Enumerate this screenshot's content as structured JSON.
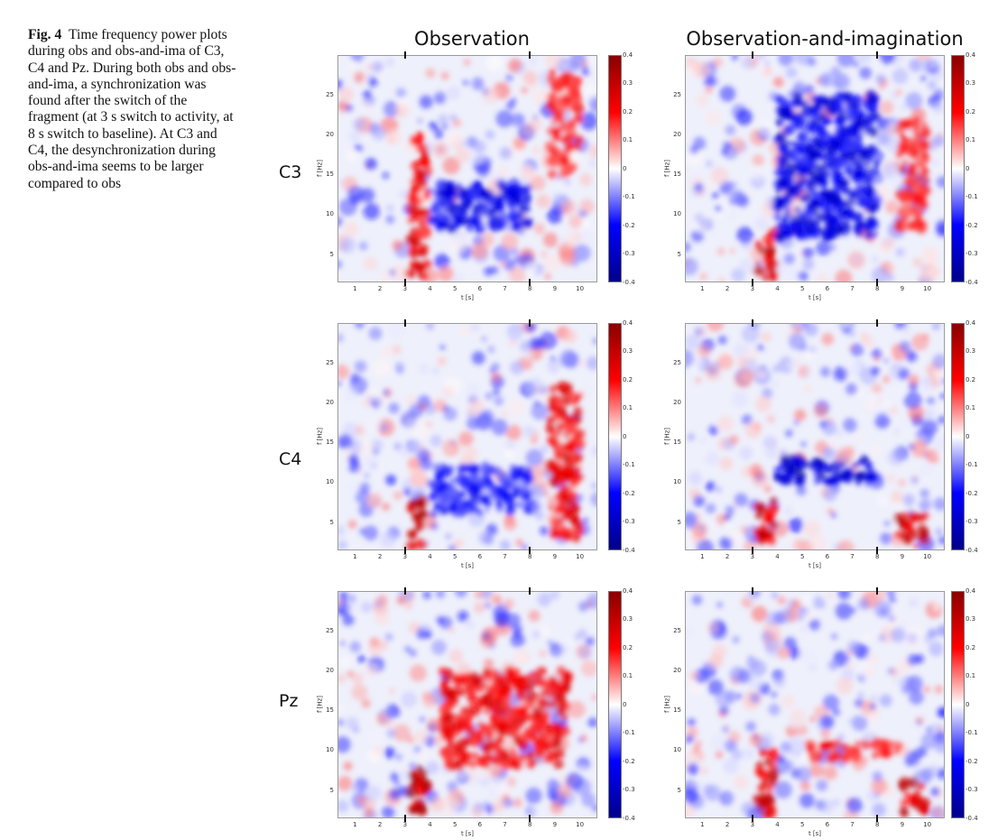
{
  "caption": {
    "label": "Fig. 4",
    "text": "Time frequency power plots during obs and obs-and-ima of C3, C4 and Pz. During both obs and obs-and-ima, a synchronization was found after the switch of the fragment (at 3 s switch to activity, at 8 s switch to baseline). At C3 and C4, the desynchronization during obs-and-ima seems to be larger compared to obs"
  },
  "columns": [
    "Observation",
    "Observation-and-imagination"
  ],
  "rows": [
    "C3",
    "C4",
    "Pz"
  ],
  "axes": {
    "xlabel": "t [s]",
    "ylabel": "f [Hz]",
    "xticks": [
      "1",
      "2",
      "3",
      "4",
      "5",
      "6",
      "7",
      "8",
      "9",
      "10"
    ],
    "yticks": [
      "5",
      "10",
      "15",
      "20",
      "25"
    ],
    "xlim": [
      0.3,
      10.7
    ],
    "ylim": [
      1.5,
      30
    ]
  },
  "colorbar": {
    "ticks": [
      "0.4",
      "0.3",
      "0.2",
      "0.1",
      "0",
      "-0.1",
      "-0.2",
      "-0.3",
      "-0.4"
    ],
    "range": [
      -0.4,
      0.4
    ],
    "colors": [
      "#00008b",
      "#0000ff",
      "#ffffff",
      "#ff0000",
      "#8b0000"
    ]
  },
  "markers_s": [
    3,
    8
  ],
  "chart_data": [
    {
      "type": "heatmap",
      "electrode": "C3",
      "condition": "Observation",
      "xlabel": "t [s]",
      "ylabel": "f [Hz]",
      "clim": [
        -0.4,
        0.4
      ],
      "features": [
        {
          "t": [
            3.2,
            3.9
          ],
          "f": [
            2,
            20
          ],
          "value": 0.25
        },
        {
          "t": [
            4,
            8
          ],
          "f": [
            8,
            14
          ],
          "value": -0.25
        },
        {
          "t": [
            8.8,
            10
          ],
          "f": [
            15,
            28
          ],
          "value": 0.2
        }
      ]
    },
    {
      "type": "heatmap",
      "electrode": "C3",
      "condition": "Observation-and-imagination",
      "xlabel": "t [s]",
      "ylabel": "f [Hz]",
      "clim": [
        -0.4,
        0.4
      ],
      "features": [
        {
          "t": [
            3.2,
            3.9
          ],
          "f": [
            2,
            8
          ],
          "value": 0.3
        },
        {
          "t": [
            4,
            8
          ],
          "f": [
            7,
            25
          ],
          "value": -0.28
        },
        {
          "t": [
            8.8,
            10
          ],
          "f": [
            8,
            22
          ],
          "value": 0.2
        }
      ]
    },
    {
      "type": "heatmap",
      "electrode": "C4",
      "condition": "Observation",
      "xlabel": "t [s]",
      "ylabel": "f [Hz]",
      "clim": [
        -0.4,
        0.4
      ],
      "features": [
        {
          "t": [
            3.2,
            3.9
          ],
          "f": [
            2,
            8
          ],
          "value": 0.35
        },
        {
          "t": [
            4,
            8
          ],
          "f": [
            6,
            12
          ],
          "value": -0.2
        },
        {
          "t": [
            8.8,
            10
          ],
          "f": [
            3,
            22
          ],
          "value": 0.25
        }
      ]
    },
    {
      "type": "heatmap",
      "electrode": "C4",
      "condition": "Observation-and-imagination",
      "xlabel": "t [s]",
      "ylabel": "f [Hz]",
      "clim": [
        -0.4,
        0.4
      ],
      "features": [
        {
          "t": [
            3.2,
            3.9
          ],
          "f": [
            2,
            8
          ],
          "value": 0.3
        },
        {
          "t": [
            4,
            8
          ],
          "f": [
            10,
            13
          ],
          "value": -0.32
        },
        {
          "t": [
            8.8,
            10
          ],
          "f": [
            2,
            6
          ],
          "value": 0.3
        }
      ]
    },
    {
      "type": "heatmap",
      "electrode": "Pz",
      "condition": "Observation",
      "xlabel": "t [s]",
      "ylabel": "f [Hz]",
      "clim": [
        -0.4,
        0.4
      ],
      "features": [
        {
          "t": [
            3.2,
            3.9
          ],
          "f": [
            2,
            8
          ],
          "value": 0.4
        },
        {
          "t": [
            4.5,
            9.5
          ],
          "f": [
            8,
            20
          ],
          "value": 0.25
        }
      ]
    },
    {
      "type": "heatmap",
      "electrode": "Pz",
      "condition": "Observation-and-imagination",
      "xlabel": "t [s]",
      "ylabel": "f [Hz]",
      "clim": [
        -0.4,
        0.4
      ],
      "features": [
        {
          "t": [
            3.2,
            3.9
          ],
          "f": [
            2,
            10
          ],
          "value": 0.3
        },
        {
          "t": [
            5,
            9
          ],
          "f": [
            9,
            11
          ],
          "value": 0.2
        },
        {
          "t": [
            9,
            10
          ],
          "f": [
            2,
            6
          ],
          "value": 0.3
        }
      ]
    }
  ]
}
